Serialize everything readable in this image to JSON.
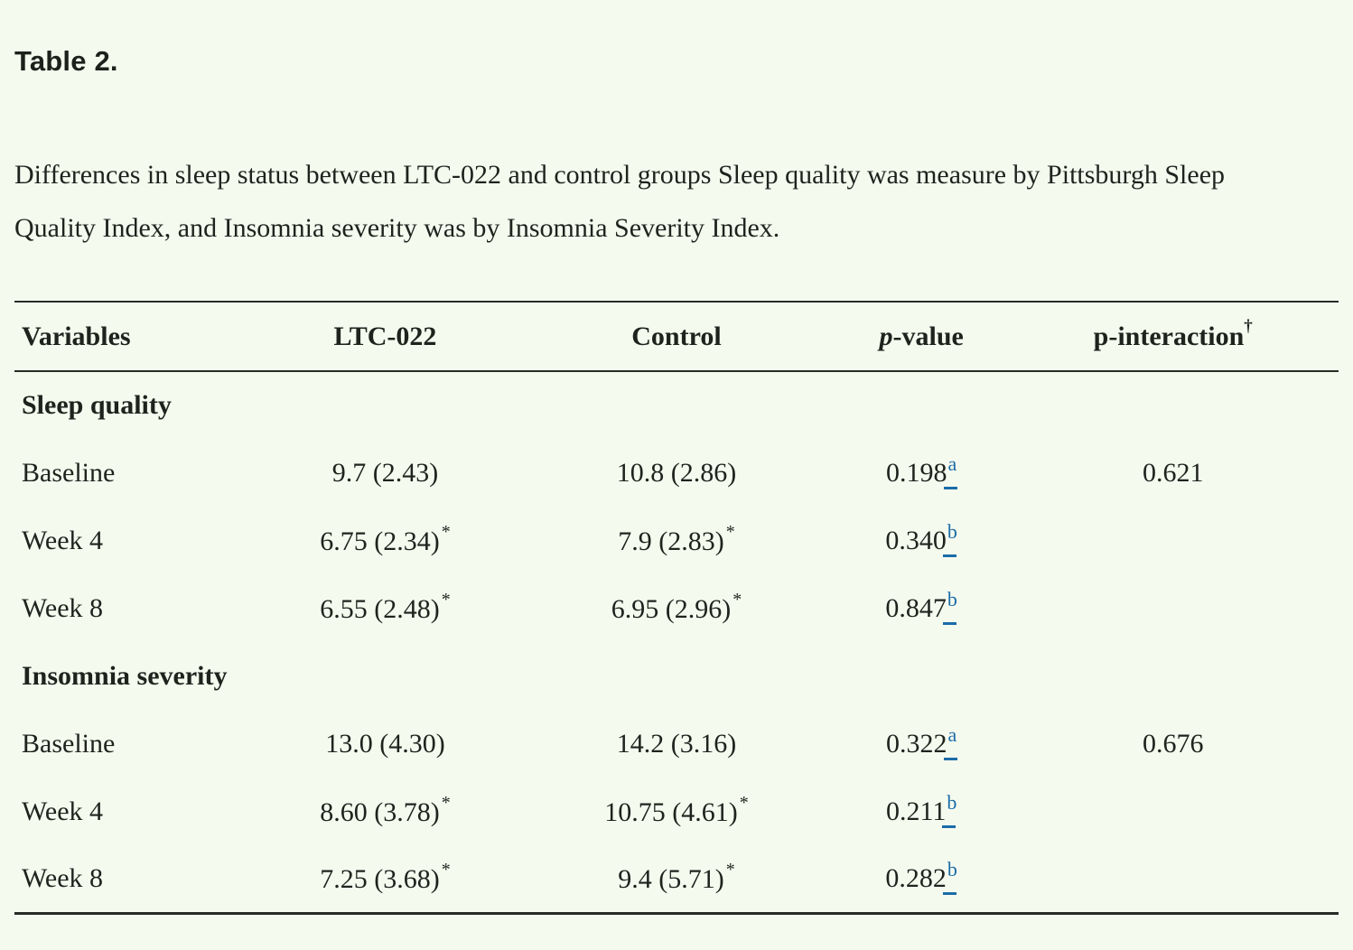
{
  "title": "Table 2.",
  "caption": "Differences in sleep status between LTC-022 and control groups Sleep quality was measure by Pittsburgh Sleep Quality Index, and Insomnia severity was by Insomnia Severity Index.",
  "colors": {
    "background": "#f5faef",
    "text": "#1e231d",
    "rule": "#272d26",
    "footnote_link_blue": "#1b6ca8"
  },
  "table": {
    "star_symbol": "*",
    "headers": [
      {
        "label": "Variables"
      },
      {
        "label": "LTC-022"
      },
      {
        "label": "Control"
      },
      {
        "label": "p-value",
        "italic_first_char": true
      },
      {
        "label": "p-interaction",
        "sup": "†"
      }
    ],
    "rows": [
      {
        "type": "section",
        "label": "Sleep quality"
      },
      {
        "type": "data",
        "label": "Baseline",
        "ltc022": {
          "text": "9.7 (2.43)",
          "star": false
        },
        "control": {
          "text": "10.8 (2.86)",
          "star": false
        },
        "p_value": {
          "text": "0.198",
          "footnote": "a"
        },
        "p_interaction": "0.621"
      },
      {
        "type": "data",
        "label": "Week 4",
        "ltc022": {
          "text": "6.75 (2.34)",
          "star": true
        },
        "control": {
          "text": "7.9 (2.83)",
          "star": true
        },
        "p_value": {
          "text": "0.340",
          "footnote": "b"
        },
        "p_interaction": ""
      },
      {
        "type": "data",
        "label": "Week 8",
        "ltc022": {
          "text": "6.55 (2.48)",
          "star": true
        },
        "control": {
          "text": "6.95 (2.96)",
          "star": true
        },
        "p_value": {
          "text": "0.847",
          "footnote": "b"
        },
        "p_interaction": ""
      },
      {
        "type": "section",
        "label": "Insomnia severity"
      },
      {
        "type": "data",
        "label": "Baseline",
        "ltc022": {
          "text": "13.0 (4.30)",
          "star": false
        },
        "control": {
          "text": "14.2 (3.16)",
          "star": false
        },
        "p_value": {
          "text": "0.322",
          "footnote": "a"
        },
        "p_interaction": "0.676"
      },
      {
        "type": "data",
        "label": "Week 4",
        "ltc022": {
          "text": "8.60 (3.78)",
          "star": true
        },
        "control": {
          "text": "10.75 (4.61)",
          "star": true
        },
        "p_value": {
          "text": "0.211",
          "footnote": "b"
        },
        "p_interaction": ""
      },
      {
        "type": "data",
        "label": "Week 8",
        "ltc022": {
          "text": "7.25 (3.68)",
          "star": true
        },
        "control": {
          "text": "9.4 (5.71)",
          "star": true
        },
        "p_value": {
          "text": "0.282",
          "footnote": "b"
        },
        "p_interaction": ""
      }
    ]
  }
}
